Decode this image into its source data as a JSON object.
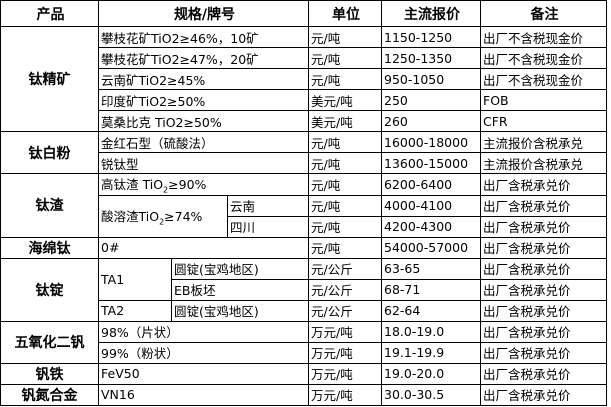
{
  "headers": [
    "产品",
    "规格/牌号",
    "单位",
    "主流报价",
    "备注"
  ],
  "groups": {
    "titanium_concentrate": {
      "product": "钛精矿",
      "rows": [
        {
          "spec": "攀枝花矿TiO2≥46%，10矿",
          "unit": "元/吨",
          "price": "1150-1250",
          "note": "出厂不含税现金价"
        },
        {
          "spec": "攀枝花矿TiO2≥47%，20矿",
          "unit": "元/吨",
          "price": "1250-1350",
          "note": "出厂不含税现金价"
        },
        {
          "spec": "云南矿TiO2≥45%",
          "unit": "元/吨",
          "price": "950-1050",
          "note": "出厂不含税现金价"
        },
        {
          "spec": "印度矿TiO2≥50%",
          "unit": "美元/吨",
          "price": "250",
          "note": "FOB"
        },
        {
          "spec": "莫桑比克 TiO2≥50%",
          "unit": "美元/吨",
          "price": "260",
          "note": "CFR"
        }
      ]
    },
    "titanium_dioxide": {
      "product": "钛白粉",
      "rows": [
        {
          "spec": "金红石型（硫酸法）",
          "unit": "元/吨",
          "price": "16000-18000",
          "note": "主流报价含税承兑"
        },
        {
          "spec": "锐钛型",
          "unit": "元/吨",
          "price": "13600-15000",
          "note": "主流报价含税承兑"
        }
      ]
    },
    "titanium_slag": {
      "product": "钛渣",
      "high": {
        "spec_pre": "高钛渣 TiO",
        "spec_sub": "2",
        "spec_post": "≥90%",
        "unit": "元/吨",
        "price": "6200-6400",
        "note": "出厂含税承兑价"
      },
      "acid": {
        "spec_pre": "酸溶渣TiO",
        "spec_sub": "2",
        "spec_post": "≥74%",
        "rows": [
          {
            "region": "云南",
            "unit": "元/吨",
            "price": "4000-4100",
            "note": "出厂含税承兑价"
          },
          {
            "region": "四川",
            "unit": "元/吨",
            "price": "4200-4300",
            "note": "出厂含税承兑价"
          }
        ]
      }
    },
    "sponge_titanium": {
      "product": "海绵钛",
      "spec": "0#",
      "unit": "元/吨",
      "price": "54000-57000",
      "note": "出厂含税承兑价"
    },
    "titanium_ingot": {
      "product": "钛锭",
      "ta1": "TA1",
      "ta2": "TA2",
      "rows": [
        {
          "form": "圆锭(宝鸡地区)",
          "unit": "元/公斤",
          "price": "63-65",
          "note": "出厂含税承兑价"
        },
        {
          "form": "EB板坯",
          "unit": "元/公斤",
          "price": "68-71",
          "note": "出厂含税承兑价"
        },
        {
          "form": "圆锭(宝鸡地区)",
          "unit": "元/公斤",
          "price": "62-64",
          "note": "出厂含税承兑价"
        }
      ]
    },
    "vanadium_pentoxide": {
      "product": "五氧化二钒",
      "rows": [
        {
          "spec": "98%（片状）",
          "unit": "万元/吨",
          "price": "18.0-19.0",
          "note": "出厂含税承兑价"
        },
        {
          "spec": "99%（粉状）",
          "unit": "万元/吨",
          "price": "19.1-19.9",
          "note": "出厂含税承兑价"
        }
      ]
    },
    "ferrovanadium": {
      "product": "钒铁",
      "spec": "FeV50",
      "unit": "万元/吨",
      "price": "19.0-20.0",
      "note": "出厂含税承兑价"
    },
    "vanadium_nitrogen": {
      "product": "钒氮合金",
      "spec": "VN16",
      "unit": "万元/吨",
      "price": "30.0-30.5",
      "note": "出厂含税承兑价"
    }
  }
}
